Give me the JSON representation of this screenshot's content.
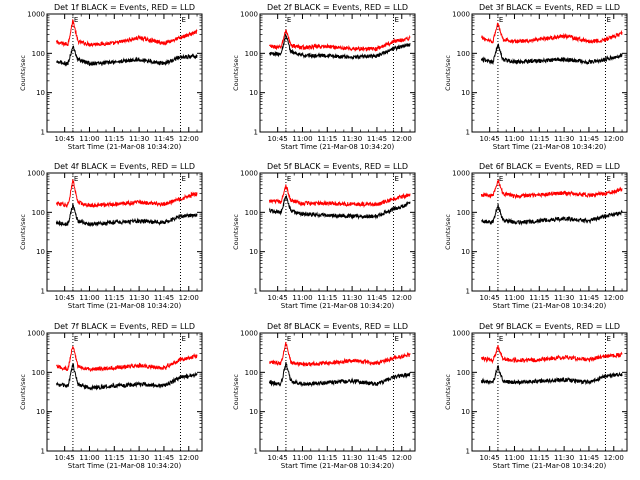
{
  "chart_data": [
    {
      "type": "line",
      "title": "Det 1f BLACK = Events, RED = LLD",
      "xlabel": "Start Time (21-Mar-08 10:34:20)",
      "ylabel": "Counts/sec",
      "ylim": [
        1,
        1000
      ],
      "y_scale": "log",
      "y_ticks": [
        "1",
        "10",
        "100",
        "1000"
      ],
      "x_ticks": [
        "10:45",
        "11:00",
        "11:15",
        "11:30",
        "11:45",
        "12:00"
      ],
      "x_range": [
        "10:34:20",
        "12:08"
      ],
      "markers": [
        "E",
        "E"
      ],
      "marker_times": [
        "10:50",
        "11:55"
      ],
      "grid": false,
      "legend": "none",
      "x": [
        "10:40",
        "10:47",
        "10:50",
        "10:53",
        "11:00",
        "11:15",
        "11:30",
        "11:45",
        "11:55",
        "12:05"
      ],
      "series": [
        {
          "color": "#ff0000",
          "values": [
            190,
            170,
            700,
            200,
            170,
            180,
            250,
            180,
            250,
            350
          ]
        },
        {
          "color": "#000000",
          "values": [
            60,
            55,
            150,
            70,
            55,
            60,
            70,
            55,
            80,
            85
          ]
        }
      ]
    },
    {
      "type": "line",
      "title": "Det 2f BLACK = Events, RED = LLD",
      "xlabel": "Start Time (21-Mar-08 10:34:20)",
      "ylabel": "Counts/sec",
      "ylim": [
        1,
        1000
      ],
      "y_scale": "log",
      "y_ticks": [
        "1",
        "10",
        "100",
        "1000"
      ],
      "x_ticks": [
        "10:45",
        "11:00",
        "11:15",
        "11:30",
        "11:45",
        "12:00"
      ],
      "x_range": [
        "10:34:20",
        "12:08"
      ],
      "markers": [
        "E",
        "E"
      ],
      "marker_times": [
        "10:50",
        "11:55"
      ],
      "grid": false,
      "legend": "none",
      "x": [
        "10:40",
        "10:47",
        "10:50",
        "10:53",
        "11:00",
        "11:15",
        "11:30",
        "11:45",
        "11:55",
        "12:05"
      ],
      "series": [
        {
          "color": "#ff0000",
          "values": [
            150,
            140,
            400,
            160,
            140,
            150,
            130,
            130,
            200,
            240
          ]
        },
        {
          "color": "#000000",
          "values": [
            100,
            95,
            300,
            110,
            90,
            85,
            80,
            85,
            130,
            170
          ]
        }
      ]
    },
    {
      "type": "line",
      "title": "Det 3f BLACK = Events, RED = LLD",
      "xlabel": "Start Time (21-Mar-08 10:34:20)",
      "ylabel": "Counts/sec",
      "ylim": [
        1,
        1000
      ],
      "y_scale": "log",
      "y_ticks": [
        "1",
        "10",
        "100",
        "1000"
      ],
      "x_ticks": [
        "10:45",
        "11:00",
        "11:15",
        "11:30",
        "11:45",
        "12:00"
      ],
      "x_range": [
        "10:34:20",
        "12:08"
      ],
      "markers": [
        "E",
        "E"
      ],
      "marker_times": [
        "10:50",
        "11:55"
      ],
      "grid": false,
      "legend": "none",
      "x": [
        "10:40",
        "10:47",
        "10:50",
        "10:53",
        "11:00",
        "11:15",
        "11:30",
        "11:45",
        "11:55",
        "12:05"
      ],
      "series": [
        {
          "color": "#ff0000",
          "values": [
            250,
            200,
            600,
            230,
            200,
            220,
            280,
            200,
            220,
            330
          ]
        },
        {
          "color": "#000000",
          "values": [
            70,
            60,
            170,
            70,
            60,
            65,
            70,
            60,
            70,
            90
          ]
        }
      ]
    },
    {
      "type": "line",
      "title": "Det 4f BLACK = Events, RED = LLD",
      "xlabel": "Start Time (21-Mar-08 10:34:20)",
      "ylabel": "Counts/sec",
      "ylim": [
        1,
        1000
      ],
      "y_scale": "log",
      "y_ticks": [
        "1",
        "10",
        "100",
        "1000"
      ],
      "x_ticks": [
        "10:45",
        "11:00",
        "11:15",
        "11:30",
        "11:45",
        "12:00"
      ],
      "x_range": [
        "10:34:20",
        "12:08"
      ],
      "markers": [
        "E",
        "E"
      ],
      "marker_times": [
        "10:50",
        "11:55"
      ],
      "grid": false,
      "legend": "none",
      "x": [
        "10:40",
        "10:47",
        "10:50",
        "10:53",
        "11:00",
        "11:15",
        "11:30",
        "11:45",
        "11:55",
        "12:05"
      ],
      "series": [
        {
          "color": "#ff0000",
          "values": [
            170,
            150,
            650,
            180,
            150,
            160,
            180,
            160,
            220,
            300
          ]
        },
        {
          "color": "#000000",
          "values": [
            55,
            50,
            160,
            60,
            50,
            55,
            60,
            55,
            80,
            85
          ]
        }
      ]
    },
    {
      "type": "line",
      "title": "Det 5f BLACK = Events, RED = LLD",
      "xlabel": "Start Time (21-Mar-08 10:34:20)",
      "ylabel": "Counts/sec",
      "ylim": [
        1,
        1000
      ],
      "y_scale": "log",
      "y_ticks": [
        "1",
        "10",
        "100",
        "1000"
      ],
      "x_ticks": [
        "10:45",
        "11:00",
        "11:15",
        "11:30",
        "11:45",
        "12:00"
      ],
      "x_range": [
        "10:34:20",
        "12:08"
      ],
      "markers": [
        "E",
        "E"
      ],
      "marker_times": [
        "10:50",
        "11:55"
      ],
      "grid": false,
      "legend": "none",
      "x": [
        "10:40",
        "10:47",
        "10:50",
        "10:53",
        "11:00",
        "11:15",
        "11:30",
        "11:45",
        "11:55",
        "12:05"
      ],
      "series": [
        {
          "color": "#ff0000",
          "values": [
            200,
            180,
            500,
            200,
            170,
            170,
            160,
            160,
            220,
            280
          ]
        },
        {
          "color": "#000000",
          "values": [
            110,
            100,
            260,
            110,
            90,
            85,
            80,
            80,
            120,
            170
          ]
        }
      ]
    },
    {
      "type": "line",
      "title": "Det 6f BLACK = Events, RED = LLD",
      "xlabel": "Start Time (21-Mar-08 10:34:20)",
      "ylabel": "Counts/sec",
      "ylim": [
        1,
        1000
      ],
      "y_scale": "log",
      "y_ticks": [
        "1",
        "10",
        "100",
        "1000"
      ],
      "x_ticks": [
        "10:45",
        "11:00",
        "11:15",
        "11:30",
        "11:45",
        "12:00"
      ],
      "x_range": [
        "10:34:20",
        "12:08"
      ],
      "markers": [
        "E",
        "E"
      ],
      "marker_times": [
        "10:50",
        "11:55"
      ],
      "grid": false,
      "legend": "none",
      "x": [
        "10:40",
        "10:47",
        "10:50",
        "10:53",
        "11:00",
        "11:15",
        "11:30",
        "11:45",
        "11:55",
        "12:05"
      ],
      "series": [
        {
          "color": "#ff0000",
          "values": [
            280,
            260,
            650,
            300,
            260,
            280,
            310,
            270,
            300,
            380
          ]
        },
        {
          "color": "#000000",
          "values": [
            60,
            55,
            150,
            65,
            55,
            60,
            70,
            60,
            80,
            100
          ]
        }
      ]
    },
    {
      "type": "line",
      "title": "Det 7f BLACK = Events, RED = LLD",
      "xlabel": "Start Time (21-Mar-08 10:34:20)",
      "ylabel": "Counts/sec",
      "ylim": [
        1,
        1000
      ],
      "y_scale": "log",
      "y_ticks": [
        "1",
        "10",
        "100",
        "1000"
      ],
      "x_ticks": [
        "10:45",
        "11:00",
        "11:15",
        "11:30",
        "11:45",
        "12:00"
      ],
      "x_range": [
        "10:34:20",
        "12:08"
      ],
      "markers": [
        "E",
        "E"
      ],
      "marker_times": [
        "10:50",
        "11:55"
      ],
      "grid": false,
      "legend": "none",
      "x": [
        "10:40",
        "10:47",
        "10:50",
        "10:53",
        "11:00",
        "11:15",
        "11:30",
        "11:45",
        "11:55",
        "12:05"
      ],
      "series": [
        {
          "color": "#ff0000",
          "values": [
            140,
            120,
            500,
            140,
            120,
            130,
            150,
            130,
            210,
            260
          ]
        },
        {
          "color": "#000000",
          "values": [
            50,
            45,
            160,
            50,
            40,
            45,
            50,
            45,
            75,
            85
          ]
        }
      ]
    },
    {
      "type": "line",
      "title": "Det 8f BLACK = Events, RED = LLD",
      "xlabel": "Start Time (21-Mar-08 10:34:20)",
      "ylabel": "Counts/sec",
      "ylim": [
        1,
        1000
      ],
      "y_scale": "log",
      "y_ticks": [
        "1",
        "10",
        "100",
        "1000"
      ],
      "x_ticks": [
        "10:45",
        "11:00",
        "11:15",
        "11:30",
        "11:45",
        "12:00"
      ],
      "x_range": [
        "10:34:20",
        "12:08"
      ],
      "markers": [
        "E",
        "E"
      ],
      "marker_times": [
        "10:50",
        "11:55"
      ],
      "grid": false,
      "legend": "none",
      "x": [
        "10:40",
        "10:47",
        "10:50",
        "10:53",
        "11:00",
        "11:15",
        "11:30",
        "11:45",
        "11:55",
        "12:05"
      ],
      "series": [
        {
          "color": "#ff0000",
          "values": [
            180,
            170,
            550,
            180,
            160,
            170,
            200,
            170,
            230,
            280
          ]
        },
        {
          "color": "#000000",
          "values": [
            55,
            50,
            170,
            60,
            50,
            55,
            60,
            50,
            75,
            90
          ]
        }
      ]
    },
    {
      "type": "line",
      "title": "Det 9f BLACK = Events, RED = LLD",
      "xlabel": "Start Time (21-Mar-08 10:34:20)",
      "ylabel": "Counts/sec",
      "ylim": [
        1,
        1000
      ],
      "y_scale": "log",
      "y_ticks": [
        "1",
        "10",
        "100",
        "1000"
      ],
      "x_ticks": [
        "10:45",
        "11:00",
        "11:15",
        "11:30",
        "11:45",
        "12:00"
      ],
      "x_range": [
        "10:34:20",
        "12:08"
      ],
      "markers": [
        "E",
        "E"
      ],
      "marker_times": [
        "10:50",
        "11:55"
      ],
      "grid": false,
      "legend": "none",
      "x": [
        "10:40",
        "10:47",
        "10:50",
        "10:53",
        "11:00",
        "11:15",
        "11:30",
        "11:45",
        "11:55",
        "12:05"
      ],
      "series": [
        {
          "color": "#ff0000",
          "values": [
            230,
            200,
            450,
            220,
            200,
            210,
            240,
            210,
            260,
            280
          ]
        },
        {
          "color": "#000000",
          "values": [
            60,
            55,
            140,
            60,
            55,
            60,
            65,
            55,
            80,
            90
          ]
        }
      ]
    }
  ]
}
